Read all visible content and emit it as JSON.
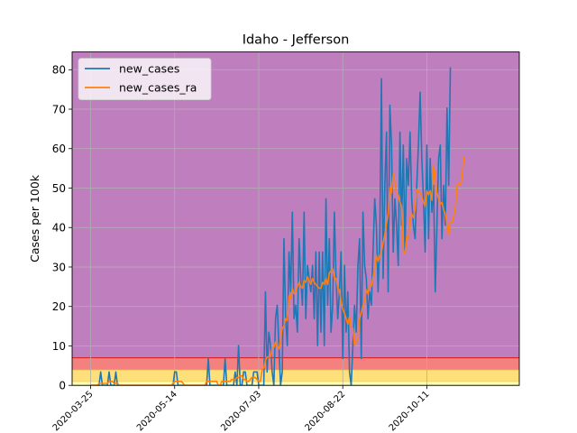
{
  "chart_data": {
    "type": "line",
    "title": "Idaho - Jefferson",
    "xlabel": "",
    "ylabel": "Cases per 100k",
    "xlim": [
      "2020-03-14",
      "2020-12-05"
    ],
    "ylim": [
      0,
      84.5
    ],
    "yticks": [
      0,
      10,
      20,
      30,
      40,
      50,
      60,
      70,
      80
    ],
    "xticks": [
      "2020-03-25",
      "2020-05-14",
      "2020-07-03",
      "2020-08-22",
      "2020-10-11"
    ],
    "grid": true,
    "legend": "top-left",
    "bands": [
      {
        "from": 0,
        "to": 1,
        "color": "#ffffb2"
      },
      {
        "from": 1,
        "to": 4,
        "color": "#fee07a"
      },
      {
        "from": 4,
        "to": 7,
        "color": "#f58080"
      },
      {
        "from": 7,
        "to": 84.5,
        "color": "#bf7fbf"
      }
    ],
    "series": [
      {
        "name": "new_cases",
        "color": "#1f77b4",
        "start": "2020-03-25",
        "values": [
          0,
          0,
          0,
          0,
          0,
          0,
          3.4,
          0,
          0,
          0,
          0,
          3.4,
          0,
          0,
          0,
          3.4,
          0,
          0,
          0,
          0,
          0,
          0,
          0,
          0,
          0,
          0,
          0,
          0,
          0,
          0,
          0,
          0,
          0,
          0,
          0,
          0,
          0,
          0,
          0,
          0,
          0,
          0,
          0,
          0,
          0,
          0,
          0,
          0,
          0,
          0,
          3.4,
          3.4,
          0,
          0,
          0,
          0,
          0,
          0,
          0,
          0,
          0,
          0,
          0,
          0,
          0,
          0,
          0,
          0,
          0,
          0,
          6.8,
          0,
          0,
          0,
          0,
          0,
          0,
          0,
          0,
          0,
          6.8,
          0,
          0,
          0,
          0,
          0,
          3.4,
          0,
          10.1,
          0,
          0,
          3.4,
          3.4,
          0,
          0,
          0,
          0,
          3.4,
          3.4,
          3.4,
          0,
          0,
          0,
          0,
          23.7,
          3.4,
          13.5,
          10.1,
          3.4,
          0,
          16.9,
          20.3,
          10.1,
          0,
          3.4,
          37.2,
          16.9,
          10.1,
          33.8,
          23.7,
          43.9,
          16.9,
          20.3,
          13.5,
          37.2,
          27.1,
          20.3,
          43.9,
          16.9,
          30.4,
          27.1,
          23.7,
          30.4,
          16.9,
          33.8,
          10.1,
          33.8,
          13.5,
          33.8,
          10.1,
          47.3,
          20.3,
          37.2,
          13.5,
          20.3,
          43.9,
          27.1,
          16.9,
          23.7,
          33.8,
          6.8,
          30.4,
          13.5,
          23.7,
          3.4,
          0,
          10.1,
          20.3,
          13.5,
          30.4,
          37.2,
          6.8,
          43.9,
          30.4,
          27.1,
          16.9,
          23.7,
          20.3,
          33.8,
          47.3,
          40.6,
          23.7,
          37.2,
          77.7,
          27.1,
          50.7,
          64.2,
          23.7,
          71,
          60.9,
          33.8,
          47.3,
          40.6,
          30.4,
          64.2,
          40.6,
          60.9,
          33.8,
          57.5,
          50.7,
          64.2,
          47.3,
          40.6,
          37.2,
          50.7,
          60.9,
          74.3,
          57.5,
          47.3,
          33.8,
          60.9,
          37.2,
          57.5,
          43.9,
          50.7,
          23.7,
          40.6,
          57.5,
          60.9,
          37.2,
          50.7,
          40.6,
          70.3,
          50.7,
          80.6
        ]
      },
      {
        "name": "new_cases_ra",
        "color": "#ff7f0e",
        "start": "2020-03-25",
        "values": [
          0,
          0,
          0,
          0,
          0,
          0.5,
          0.5,
          0.5,
          0.5,
          0.5,
          0.5,
          1,
          1,
          1,
          0.5,
          0.5,
          0.5,
          0,
          0,
          0,
          0,
          0,
          0,
          0,
          0,
          0,
          0,
          0,
          0,
          0,
          0,
          0,
          0,
          0,
          0,
          0,
          0,
          0,
          0,
          0,
          0,
          0,
          0,
          0,
          0,
          0,
          0,
          0,
          0,
          0.5,
          1,
          1,
          1,
          1,
          1,
          0.5,
          0,
          0,
          0,
          0,
          0,
          0,
          0,
          0,
          0,
          0,
          0,
          0,
          0,
          1,
          1,
          1,
          1,
          1,
          1,
          1,
          0,
          0,
          1,
          1,
          1,
          1,
          1,
          1,
          1.5,
          1.5,
          1.5,
          2,
          2,
          2.4,
          2.4,
          1.5,
          1.5,
          1,
          1,
          1.5,
          2,
          2,
          2,
          1.5,
          1,
          1,
          4,
          4.4,
          6.3,
          7.2,
          7.2,
          7.2,
          9.6,
          9.6,
          11,
          10.1,
          9.2,
          11.6,
          14.5,
          15,
          16.9,
          16.4,
          22.7,
          22.2,
          24.6,
          23.2,
          23.7,
          25.1,
          26.1,
          25.1,
          24.6,
          26.6,
          26.1,
          27.5,
          26.6,
          25.6,
          27.1,
          26.1,
          25.6,
          25.1,
          24.6,
          24.6,
          26.1,
          25.6,
          27.1,
          25.6,
          28.5,
          29,
          29.5,
          27.1,
          27.1,
          24.6,
          24.2,
          21.3,
          19.3,
          18.4,
          16.9,
          15.5,
          17.4,
          14.5,
          14.5,
          10.1,
          11.1,
          11.6,
          16.9,
          18.4,
          20.3,
          21.3,
          24.2,
          23.2,
          25.6,
          25.1,
          27.5,
          29.5,
          32.9,
          31.4,
          32.9,
          33.8,
          36.2,
          38.2,
          41.1,
          43.5,
          50.2,
          48.8,
          53.6,
          51.2,
          48.8,
          48.3,
          46.4,
          45.4,
          34.3,
          33.3,
          37.7,
          37.2,
          42.5,
          43.5,
          42.5,
          44.4,
          49.7,
          49.3,
          48.8,
          47.8,
          46.4,
          45.4,
          49.3,
          48.3,
          49.3,
          46.9,
          55.6,
          53.2,
          48.8,
          47.3,
          45.9,
          46.4,
          44.4,
          43.5,
          40.6,
          38.2,
          41.5,
          41.1,
          43,
          44.9,
          50.7,
          51.2,
          50.7,
          52.7,
          58
        ]
      }
    ]
  }
}
